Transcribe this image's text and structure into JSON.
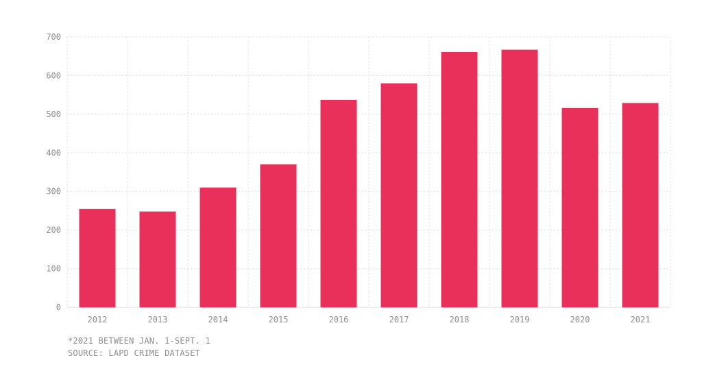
{
  "chart_data": {
    "type": "bar",
    "categories": [
      "2012",
      "2013",
      "2014",
      "2015",
      "2016",
      "2017",
      "2018",
      "2019",
      "2020",
      "2021"
    ],
    "values": [
      255,
      248,
      310,
      370,
      537,
      580,
      661,
      667,
      516,
      529
    ],
    "ylim": [
      0,
      700
    ],
    "yticks": [
      0,
      100,
      200,
      300,
      400,
      500,
      600,
      700
    ],
    "grid": true,
    "bar_color": "#e8305a",
    "grid_color": "#dcdcdc",
    "tick_color": "#8c8c8c"
  },
  "footnotes": {
    "note": "*2021 BETWEEN JAN. 1-SEPT. 1",
    "source": "SOURCE: LAPD CRIME DATASET"
  }
}
